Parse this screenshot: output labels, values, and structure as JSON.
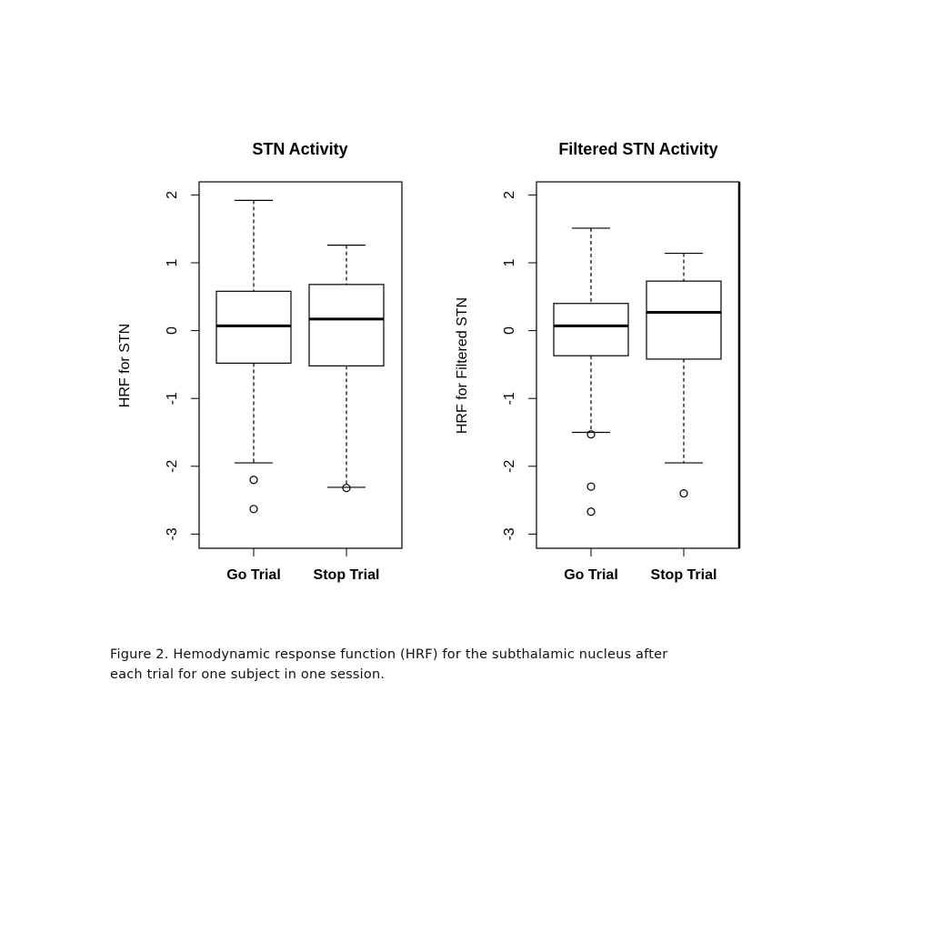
{
  "chart_data": [
    {
      "type": "box",
      "title": "STN Activity",
      "ylabel": "HRF for STN",
      "xlabel": "",
      "ylim": [
        -3.2,
        2.2
      ],
      "yticks": [
        2,
        1,
        0,
        -1,
        -2,
        -3
      ],
      "categories": [
        "Go Trial",
        "Stop Trial"
      ],
      "boxes": [
        {
          "whisker_low": -1.95,
          "q1": -0.48,
          "median": 0.07,
          "q3": 0.58,
          "whisker_high": 1.92,
          "outliers": [
            -2.2,
            -2.63
          ]
        },
        {
          "whisker_low": -2.31,
          "q1": -0.52,
          "median": 0.17,
          "q3": 0.68,
          "whisker_high": 1.26,
          "outliers": [
            -2.32
          ]
        }
      ]
    },
    {
      "type": "box",
      "title": "Filtered STN Activity",
      "ylabel": "HRF for Filtered STN",
      "xlabel": "",
      "ylim": [
        -3.2,
        2.2
      ],
      "yticks": [
        2,
        1,
        0,
        -1,
        -2,
        -3
      ],
      "categories": [
        "Go Trial",
        "Stop Trial"
      ],
      "boxes": [
        {
          "whisker_low": -1.5,
          "q1": -0.37,
          "median": 0.07,
          "q3": 0.4,
          "whisker_high": 1.51,
          "outliers": [
            -1.53,
            -2.3,
            -2.67
          ]
        },
        {
          "whisker_low": -1.95,
          "q1": -0.42,
          "median": 0.27,
          "q3": 0.73,
          "whisker_high": 1.14,
          "outliers": [
            -2.4
          ]
        }
      ]
    }
  ],
  "caption": {
    "line1": "Figure 2.  Hemodynamic response function (HRF) for the subthalamic nucleus after",
    "line2": "each trial for one subject in one session."
  }
}
